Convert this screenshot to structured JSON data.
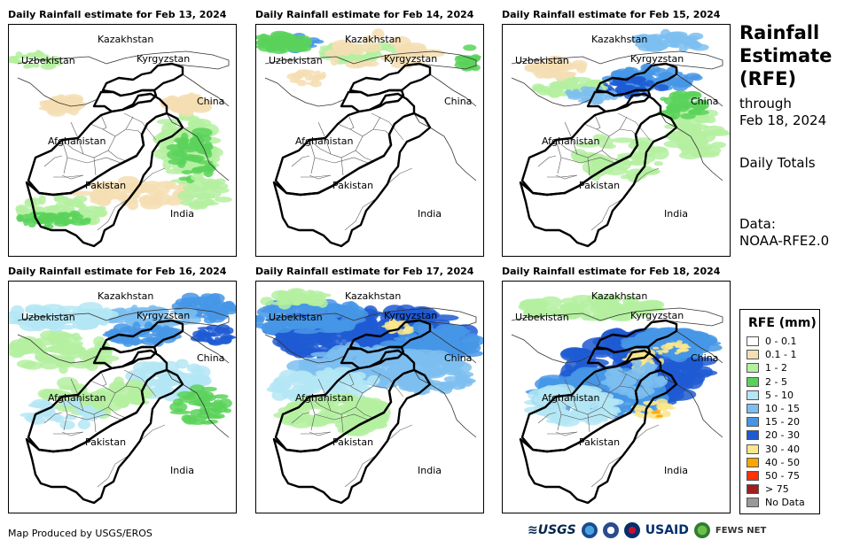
{
  "panels": [
    {
      "title": "Daily Rainfall estimate for Feb 13, 2024",
      "intensity": 0
    },
    {
      "title": "Daily Rainfall estimate for Feb 14, 2024",
      "intensity": 1
    },
    {
      "title": "Daily Rainfall estimate for Feb 15, 2024",
      "intensity": 2
    },
    {
      "title": "Daily Rainfall estimate for Feb 16, 2024",
      "intensity": 3
    },
    {
      "title": "Daily Rainfall estimate for Feb 17, 2024",
      "intensity": 4
    },
    {
      "title": "Daily Rainfall estimate for Feb 18, 2024",
      "intensity": 5
    }
  ],
  "map_labels": {
    "kazakhstan": "Kazakhstan",
    "uzbekistan": "Uzbekistan",
    "kyrgyzstan": "Kyrgyzstan",
    "china": "China",
    "afghanistan": "Afghanistan",
    "pakistan": "Pakistan",
    "india": "India"
  },
  "sidebar": {
    "title": "Rainfall Estimate (RFE)",
    "through_label": "through",
    "through_date": "Feb 18, 2024",
    "totals_label": "Daily Totals",
    "data_label": "Data:",
    "data_source": "NOAA-RFE2.0"
  },
  "legend": {
    "title": "RFE (mm)",
    "items": [
      {
        "label": "0 - 0.1",
        "color": "#ffffff"
      },
      {
        "label": "0.1 - 1",
        "color": "#f5deb3"
      },
      {
        "label": "1 - 2",
        "color": "#b4f0a0"
      },
      {
        "label": "2 - 5",
        "color": "#5ad25a"
      },
      {
        "label": "5 - 10",
        "color": "#b4e6f5"
      },
      {
        "label": "10 - 15",
        "color": "#7dbef0"
      },
      {
        "label": "15 - 20",
        "color": "#4696e6"
      },
      {
        "label": "20 - 30",
        "color": "#1e5ad2"
      },
      {
        "label": "30 - 40",
        "color": "#fae68c"
      },
      {
        "label": "40 - 50",
        "color": "#ffa500"
      },
      {
        "label": "50 - 75",
        "color": "#ff3200"
      },
      {
        "label": "> 75",
        "color": "#a01e1e"
      },
      {
        "label": "No Data",
        "color": "#999999"
      }
    ]
  },
  "footer": {
    "credit": "Map Produced by USGS/EROS",
    "logos": {
      "usgs": "USGS",
      "usaid": "USAID",
      "fews": "FEWS NET"
    }
  },
  "colors": {
    "tan": "#f5deb3",
    "light_green": "#b4f0a0",
    "green": "#5ad25a",
    "light_blue": "#b4e6f5",
    "blue2": "#7dbef0",
    "blue3": "#4696e6",
    "blue4": "#1e5ad2",
    "yellow": "#fae68c",
    "orange": "#ffa500"
  }
}
